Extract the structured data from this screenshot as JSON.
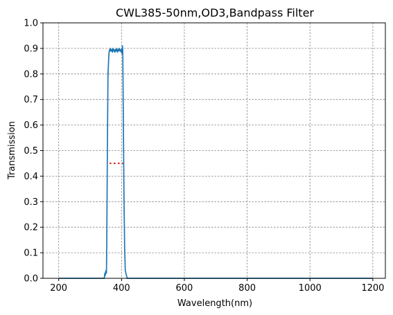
{
  "chart_data": {
    "type": "line",
    "title": "CWL385-50nm,OD3,Bandpass Filter",
    "xlabel": "Wavelength(nm)",
    "ylabel": "Transmission",
    "xlim": [
      150,
      1240
    ],
    "ylim": [
      0,
      1.0
    ],
    "xticks": [
      200,
      400,
      600,
      800,
      1000,
      1200
    ],
    "yticks": [
      0.0,
      0.1,
      0.2,
      0.3,
      0.4,
      0.5,
      0.6,
      0.7,
      0.8,
      0.9,
      1.0
    ],
    "grid": true,
    "series": [
      {
        "color": "#1f77b4",
        "style": "solid",
        "x": [
          200,
          300,
          345,
          347,
          348,
          350,
          352,
          353,
          355,
          357,
          360,
          362,
          364,
          365,
          367,
          369,
          371,
          373,
          375,
          377,
          379,
          381,
          383,
          385,
          387,
          389,
          391,
          393,
          395,
          397,
          399,
          401,
          402,
          403,
          404,
          406,
          408,
          410,
          412,
          414,
          416,
          418,
          420,
          425,
          500,
          600,
          800,
          1000,
          1200
        ],
        "y": [
          0.0,
          0.0,
          0.0,
          0.02,
          0.01,
          0.03,
          0.02,
          0.12,
          0.5,
          0.8,
          0.88,
          0.895,
          0.89,
          0.9,
          0.89,
          0.895,
          0.885,
          0.9,
          0.89,
          0.895,
          0.885,
          0.895,
          0.89,
          0.9,
          0.885,
          0.895,
          0.89,
          0.9,
          0.89,
          0.895,
          0.885,
          0.9,
          0.88,
          0.91,
          0.89,
          0.6,
          0.3,
          0.12,
          0.03,
          0.02,
          0.01,
          0.0,
          0.0,
          0.0,
          0.0,
          0.0,
          0.0,
          0.0,
          0.0
        ]
      },
      {
        "color": "#d62728",
        "style": "dotted",
        "x": [
          362,
          405
        ],
        "y": [
          0.45,
          0.45
        ]
      }
    ]
  }
}
